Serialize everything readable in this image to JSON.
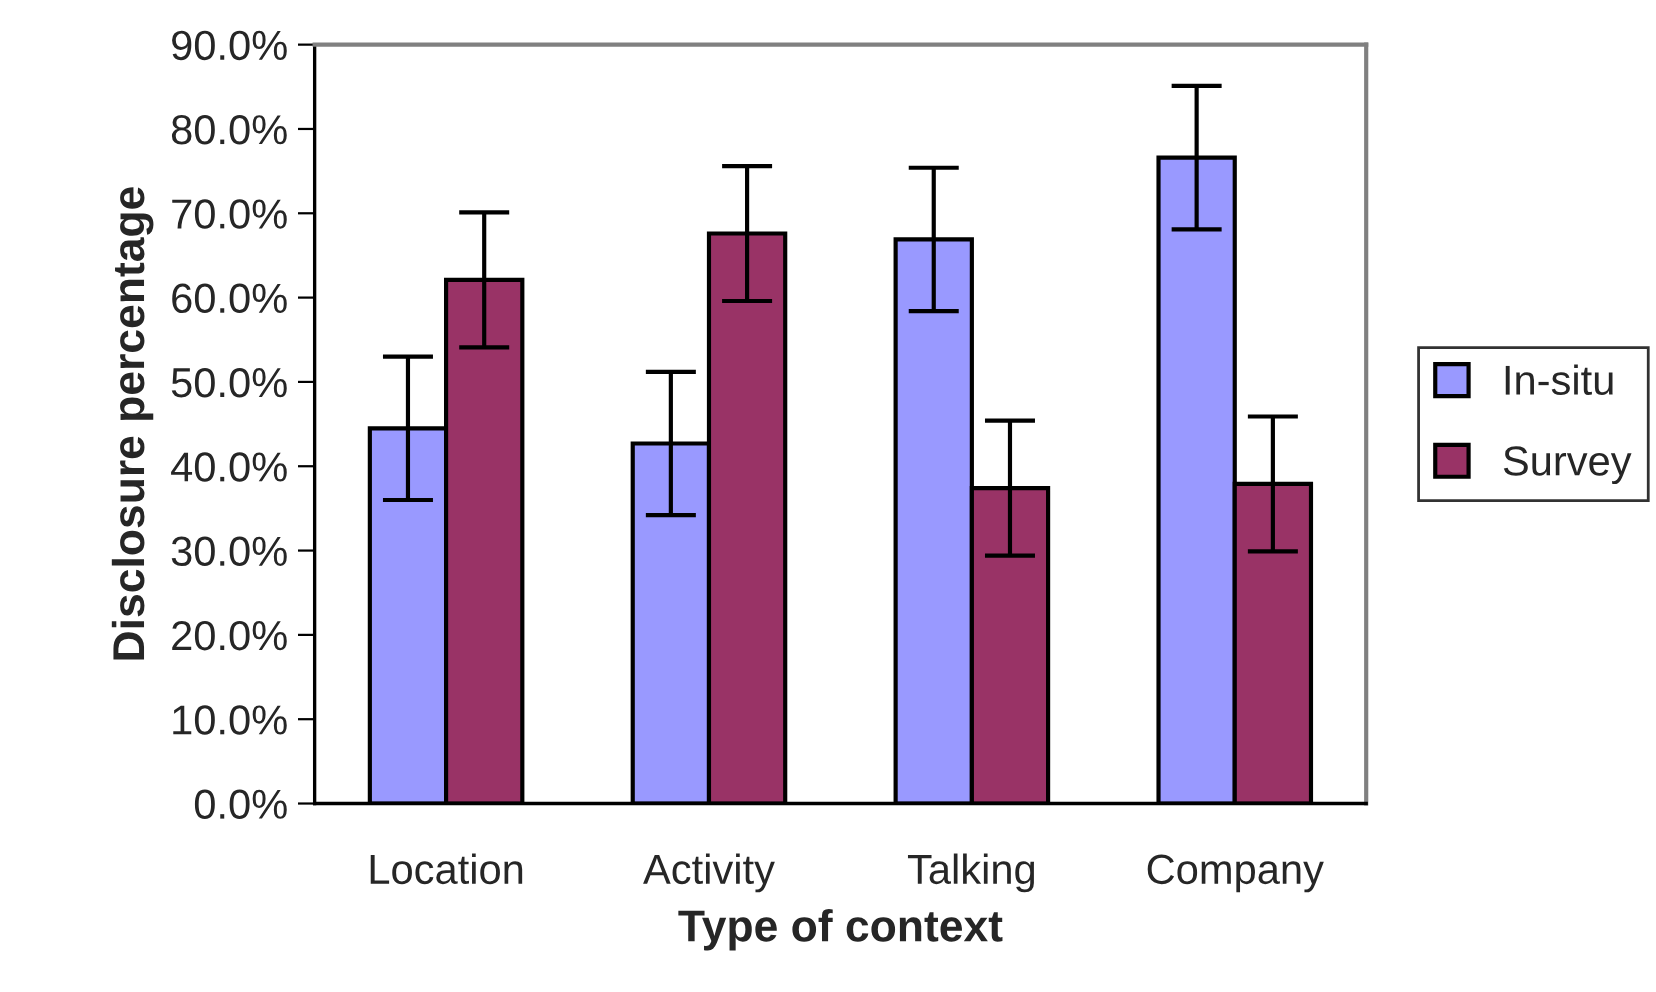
{
  "chart_data": {
    "type": "bar",
    "xlabel": "Type of context",
    "ylabel": "Disclosure percentage",
    "categories": [
      "Location",
      "Activity",
      "Talking",
      "Company"
    ],
    "series": [
      {
        "name": "In-situ",
        "color": "#9999ff",
        "values": [
          44.5,
          42.7,
          66.9,
          76.6
        ],
        "errors": [
          8.5,
          8.5,
          8.5,
          8.5
        ]
      },
      {
        "name": "Survey",
        "color": "#993366",
        "values": [
          62.1,
          67.6,
          37.4,
          37.9
        ],
        "errors": [
          8,
          8,
          8,
          8
        ]
      }
    ],
    "ylim": [
      0,
      90
    ],
    "yticks": [
      {
        "value": 0,
        "label": "0.0%"
      },
      {
        "value": 10,
        "label": "10.0%"
      },
      {
        "value": 20,
        "label": "20.0%"
      },
      {
        "value": 30,
        "label": "30.0%"
      },
      {
        "value": 40,
        "label": "40.0%"
      },
      {
        "value": 50,
        "label": "50.0%"
      },
      {
        "value": 60,
        "label": "60.0%"
      },
      {
        "value": 70,
        "label": "70.0%"
      },
      {
        "value": 80,
        "label": "80.0%"
      },
      {
        "value": 90,
        "label": "90.0%"
      }
    ],
    "grid": false,
    "legend": "right"
  }
}
